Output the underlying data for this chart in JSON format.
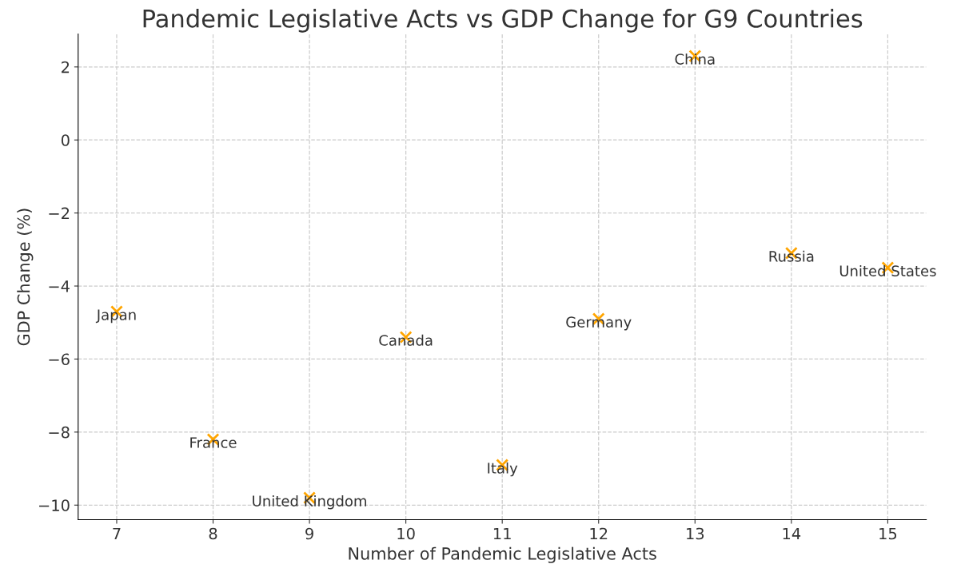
{
  "chart_data": {
    "type": "scatter",
    "title": "Pandemic Legislative Acts vs GDP Change for G9 Countries",
    "xlabel": "Number of Pandemic Legislative Acts",
    "ylabel": "GDP Change (%)",
    "series": [
      {
        "x": [
          7,
          8,
          9,
          10,
          11,
          12,
          13,
          14,
          15
        ],
        "values": [
          -4.7,
          -8.2,
          -9.8,
          -5.4,
          -8.9,
          -4.9,
          2.3,
          -3.1,
          -3.5
        ],
        "color": "#ffa500"
      }
    ],
    "annotations": [
      {
        "text": "Japan",
        "x": 7,
        "y": -4.7
      },
      {
        "text": "France",
        "x": 8,
        "y": -8.2
      },
      {
        "text": "United Kingdom",
        "x": 9,
        "y": -9.8
      },
      {
        "text": "Canada",
        "x": 10,
        "y": -5.4
      },
      {
        "text": "Italy",
        "x": 11,
        "y": -8.9
      },
      {
        "text": "Germany",
        "x": 12,
        "y": -4.9
      },
      {
        "text": "China",
        "x": 13,
        "y": 2.3
      },
      {
        "text": "Russia",
        "x": 14,
        "y": -3.1
      },
      {
        "text": "United States",
        "x": 15,
        "y": -3.5
      }
    ],
    "xlim": [
      6.6,
      15.4
    ],
    "ylim": [
      -10.4,
      2.9
    ],
    "xticks": [
      7,
      8,
      9,
      10,
      11,
      12,
      13,
      14,
      15
    ],
    "yticks": [
      {
        "value": -10,
        "label": "−10"
      },
      {
        "value": -8,
        "label": "−8"
      },
      {
        "value": -6,
        "label": "−6"
      },
      {
        "value": -4,
        "label": "−4"
      },
      {
        "value": -2,
        "label": "−2"
      },
      0,
      2
    ],
    "grid": true,
    "marker": "cross",
    "legend": false
  }
}
